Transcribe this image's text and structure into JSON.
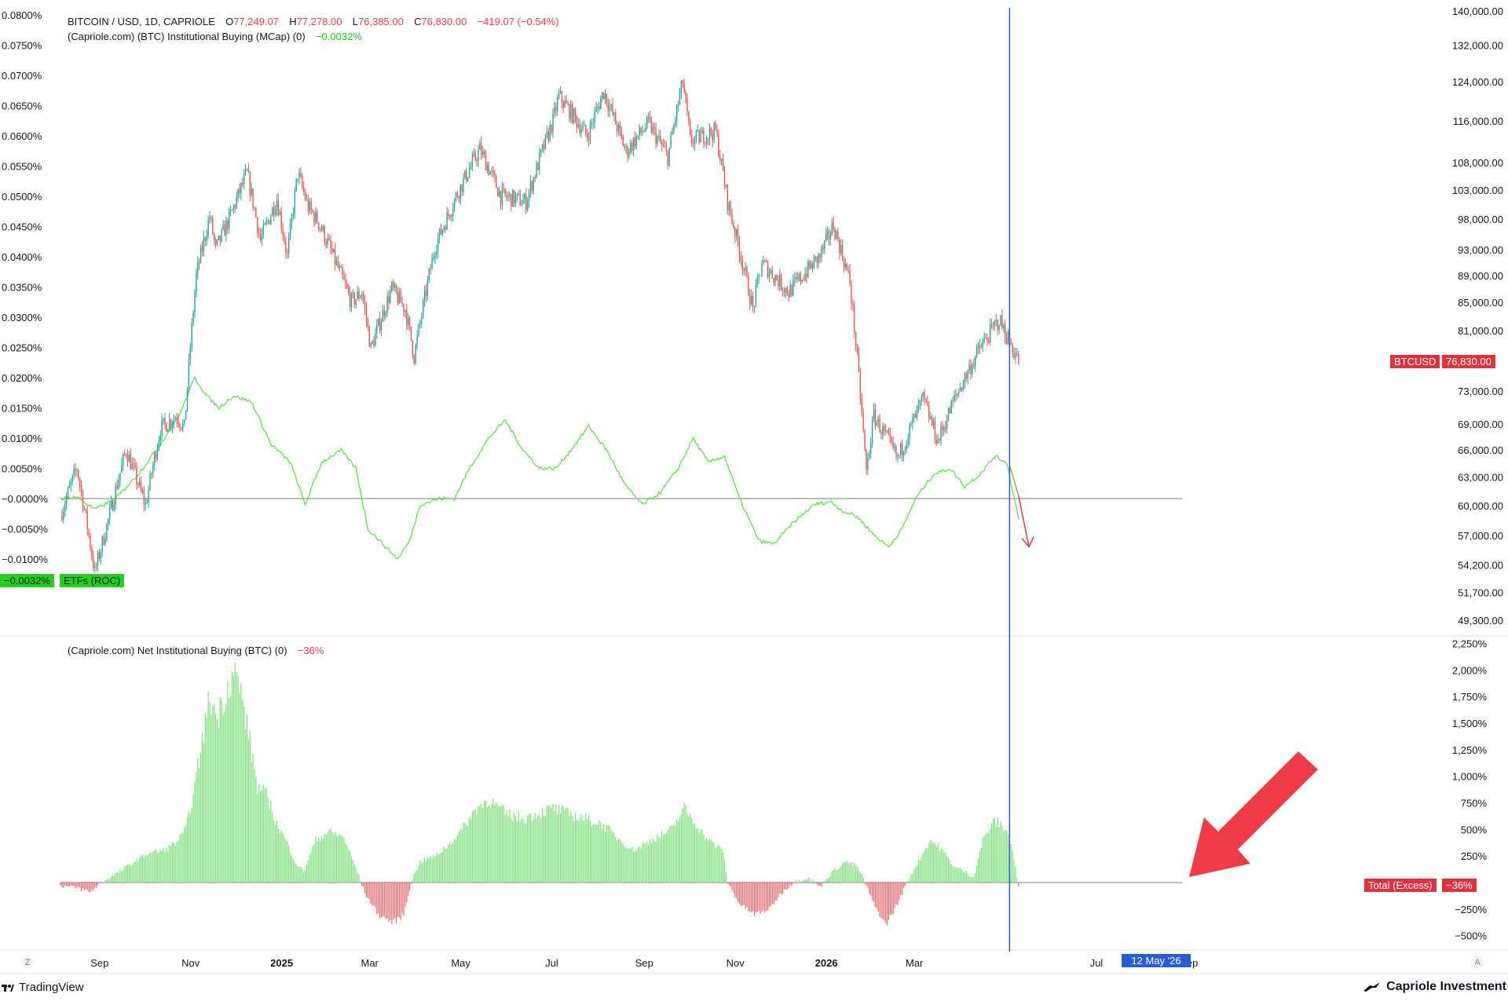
{
  "header": {
    "symbol": "BITCOIN / USD, 1D, CAPRIOLE",
    "o_label": "O",
    "o_value": "77,249.07",
    "h_label": "H",
    "h_value": "77,278.00",
    "l_label": "L",
    "l_value": "76,385.00",
    "c_label": "C",
    "c_value": "76,830.00",
    "change": "−419.07 (−0.54%)",
    "indicator1_name": "(Capriole.com) (BTC) Institutional Buying (MCap) (0)",
    "indicator1_value": "−0.0032%",
    "indicator2_name": "(Capriole.com) Net Institutional Buying (BTC) (0)",
    "indicator2_value": "−36%"
  },
  "tags": {
    "btcusd_label": "BTCUSD",
    "btcusd_value": "76,830.00",
    "roc_value": "−0.0032%",
    "roc_label": "ETFs (ROC)",
    "excess_label": "Total (Excess)",
    "excess_value": "−36%",
    "cursor_date": "12 May '26"
  },
  "corner": {
    "left": "Z",
    "right": "A"
  },
  "footer": {
    "tradingview": "TradingView",
    "capriole": "Capriole Investment"
  },
  "colors": {
    "up": "#26a69a",
    "down": "#ef5350",
    "roc_line": "#5ee04b",
    "hist_pos": "#7ce07a",
    "hist_neg": "#e06b6b",
    "cursor": "#2a5bd7",
    "axis_text": "#131722",
    "red_tag": "#e0323c",
    "green_tag": "#22d11e"
  },
  "chart_data": [
    {
      "type": "candlestick",
      "title": "BITCOIN / USD, 1D, CAPRIOLE",
      "scale": "log",
      "yaxis_side": "right",
      "y_ticks": [
        "140,000.00",
        "132,000.00",
        "124,000.00",
        "116,000.00",
        "108,000.00",
        "103,000.00",
        "98,000.00",
        "93,000.00",
        "89,000.00",
        "85,000.00",
        "81,000.00",
        "73,000.00",
        "69,000.00",
        "66,000.00",
        "63,000.00",
        "60,000.00",
        "57,000.00",
        "54,200.00",
        "51,700.00",
        "49,300.00"
      ],
      "x_ticks": [
        "Sep",
        "Nov",
        "2025",
        "Mar",
        "May",
        "Jul",
        "Sep",
        "Nov",
        "2026",
        "Mar",
        "Jul",
        "Sep"
      ],
      "x_start": "2024-08-14",
      "x_end": "2026-05-18",
      "price_path": [
        [
          "2024-08-14",
          59000
        ],
        [
          "2024-08-25",
          64000
        ],
        [
          "2024-09-06",
          53500
        ],
        [
          "2024-09-15",
          58500
        ],
        [
          "2024-09-27",
          66000
        ],
        [
          "2024-10-10",
          60000
        ],
        [
          "2024-10-20",
          68500
        ],
        [
          "2024-10-31",
          70000
        ],
        [
          "2024-11-05",
          68500
        ],
        [
          "2024-11-13",
          89000
        ],
        [
          "2024-11-22",
          98500
        ],
        [
          "2024-11-26",
          93000
        ],
        [
          "2024-12-05",
          98000
        ],
        [
          "2024-12-17",
          106000
        ],
        [
          "2024-12-26",
          94500
        ],
        [
          "2025-01-06",
          101500
        ],
        [
          "2025-01-13",
          92000
        ],
        [
          "2025-01-20",
          106000
        ],
        [
          "2025-01-27",
          100000
        ],
        [
          "2025-02-03",
          97500
        ],
        [
          "2025-02-25",
          85000
        ],
        [
          "2025-03-04",
          86500
        ],
        [
          "2025-03-10",
          78500
        ],
        [
          "2025-03-24",
          87000
        ],
        [
          "2025-04-02",
          84000
        ],
        [
          "2025-04-08",
          77500
        ],
        [
          "2025-04-22",
          93500
        ],
        [
          "2025-05-08",
          103000
        ],
        [
          "2025-05-22",
          110500
        ],
        [
          "2025-06-05",
          102000
        ],
        [
          "2025-06-22",
          101000
        ],
        [
          "2025-07-10",
          116000
        ],
        [
          "2025-07-14",
          121000
        ],
        [
          "2025-08-02",
          113000
        ],
        [
          "2025-08-13",
          122000
        ],
        [
          "2025-08-28",
          110000
        ],
        [
          "2025-09-12",
          115500
        ],
        [
          "2025-09-25",
          109000
        ],
        [
          "2025-10-05",
          124000
        ],
        [
          "2025-10-10",
          112000
        ],
        [
          "2025-10-27",
          114000
        ],
        [
          "2025-11-04",
          101000
        ],
        [
          "2025-11-21",
          84000
        ],
        [
          "2025-11-27",
          91000
        ],
        [
          "2025-12-15",
          86500
        ],
        [
          "2026-01-05",
          92000
        ],
        [
          "2026-01-14",
          97000
        ],
        [
          "2026-01-25",
          88000
        ],
        [
          "2026-02-05",
          63500
        ],
        [
          "2026-02-10",
          70000
        ],
        [
          "2026-02-26",
          65000
        ],
        [
          "2026-03-15",
          72000
        ],
        [
          "2026-03-25",
          67000
        ],
        [
          "2026-04-05",
          72000
        ],
        [
          "2026-04-22",
          78500
        ],
        [
          "2026-05-05",
          82500
        ],
        [
          "2026-05-18",
          76830
        ]
      ],
      "last_price": 76830
    },
    {
      "type": "line",
      "name": "ETFs (ROC)",
      "yaxis_side": "left",
      "y_ticks": [
        "0.0800%",
        "0.0750%",
        "0.0700%",
        "0.0650%",
        "0.0600%",
        "0.0550%",
        "0.0500%",
        "0.0450%",
        "0.0400%",
        "0.0350%",
        "0.0300%",
        "0.0250%",
        "0.0200%",
        "0.0150%",
        "0.0100%",
        "0.0050%",
        "−0.0000%",
        "−0.0050%",
        "−0.0100%"
      ],
      "ylim": [
        -0.01,
        0.08
      ],
      "zero_line": 0,
      "points": [
        [
          "2024-08-14",
          0.0
        ],
        [
          "2024-08-25",
          0.0003
        ],
        [
          "2024-09-06",
          -0.0018
        ],
        [
          "2024-09-20",
          0.0
        ],
        [
          "2024-10-05",
          0.004
        ],
        [
          "2024-10-20",
          0.009
        ],
        [
          "2024-11-02",
          0.014
        ],
        [
          "2024-11-12",
          0.02
        ],
        [
          "2024-11-20",
          0.017
        ],
        [
          "2024-11-28",
          0.015
        ],
        [
          "2024-12-08",
          0.017
        ],
        [
          "2024-12-20",
          0.016
        ],
        [
          "2025-01-02",
          0.009
        ],
        [
          "2025-01-15",
          0.006
        ],
        [
          "2025-01-25",
          -0.001
        ],
        [
          "2025-02-05",
          0.006
        ],
        [
          "2025-02-18",
          0.008
        ],
        [
          "2025-02-28",
          0.005
        ],
        [
          "2025-03-08",
          -0.005
        ],
        [
          "2025-03-20",
          -0.008
        ],
        [
          "2025-03-28",
          -0.01
        ],
        [
          "2025-04-05",
          -0.007
        ],
        [
          "2025-04-12",
          -0.001
        ],
        [
          "2025-04-25",
          0.0
        ],
        [
          "2025-05-05",
          0.0
        ],
        [
          "2025-05-15",
          0.005
        ],
        [
          "2025-05-28",
          0.01
        ],
        [
          "2025-06-08",
          0.013
        ],
        [
          "2025-06-20",
          0.008
        ],
        [
          "2025-07-01",
          0.005
        ],
        [
          "2025-07-12",
          0.005
        ],
        [
          "2025-07-22",
          0.008
        ],
        [
          "2025-08-03",
          0.012
        ],
        [
          "2025-08-15",
          0.008
        ],
        [
          "2025-08-28",
          0.002
        ],
        [
          "2025-09-08",
          -0.001
        ],
        [
          "2025-09-20",
          0.001
        ],
        [
          "2025-10-02",
          0.005
        ],
        [
          "2025-10-12",
          0.01
        ],
        [
          "2025-10-22",
          0.006
        ],
        [
          "2025-11-02",
          0.007
        ],
        [
          "2025-11-12",
          0.0
        ],
        [
          "2025-11-25",
          -0.007
        ],
        [
          "2025-12-05",
          -0.0075
        ],
        [
          "2025-12-18",
          -0.004
        ],
        [
          "2026-01-01",
          -0.001
        ],
        [
          "2026-01-12",
          -0.0005
        ],
        [
          "2026-01-20",
          -0.002
        ],
        [
          "2026-01-30",
          -0.003
        ],
        [
          "2026-02-10",
          -0.006
        ],
        [
          "2026-02-20",
          -0.008
        ],
        [
          "2026-03-01",
          -0.005
        ],
        [
          "2026-03-10",
          0.0
        ],
        [
          "2026-03-22",
          0.004
        ],
        [
          "2026-04-02",
          0.005
        ],
        [
          "2026-04-12",
          0.002
        ],
        [
          "2026-04-22",
          0.004
        ],
        [
          "2026-05-02",
          0.007
        ],
        [
          "2026-05-10",
          0.006
        ],
        [
          "2026-05-18",
          -0.0032
        ]
      ],
      "projection": [
        [
          "2026-05-12",
          0.0055
        ],
        [
          "2026-05-18",
          0.0005
        ],
        [
          "2026-05-25",
          -0.008
        ]
      ],
      "last_value": -0.0032
    },
    {
      "type": "bar",
      "name": "Net Institutional Buying (BTC)",
      "yaxis_side": "right",
      "y_ticks": [
        "2,250%",
        "2,000%",
        "1,750%",
        "1,500%",
        "1,250%",
        "1,000%",
        "750%",
        "500%",
        "250%",
        "−250%",
        "−500%"
      ],
      "ylim": [
        -560,
        2250
      ],
      "points": [
        [
          "2024-08-14",
          -30
        ],
        [
          "2024-08-25",
          -50
        ],
        [
          "2024-09-03",
          -90
        ],
        [
          "2024-09-10",
          0
        ],
        [
          "2024-09-18",
          60
        ],
        [
          "2024-10-01",
          180
        ],
        [
          "2024-10-12",
          280
        ],
        [
          "2024-10-22",
          300
        ],
        [
          "2024-10-31",
          380
        ],
        [
          "2024-11-06",
          500
        ],
        [
          "2024-11-12",
          900
        ],
        [
          "2024-11-16",
          1250
        ],
        [
          "2024-11-22",
          1750
        ],
        [
          "2024-11-27",
          1550
        ],
        [
          "2024-12-03",
          1800
        ],
        [
          "2024-12-08",
          2000
        ],
        [
          "2024-12-12",
          1850
        ],
        [
          "2024-12-18",
          1400
        ],
        [
          "2024-12-24",
          900
        ],
        [
          "2024-12-31",
          800
        ],
        [
          "2025-01-06",
          550
        ],
        [
          "2025-01-12",
          400
        ],
        [
          "2025-01-18",
          200
        ],
        [
          "2025-01-24",
          100
        ],
        [
          "2025-02-01",
          400
        ],
        [
          "2025-02-10",
          480
        ],
        [
          "2025-02-20",
          420
        ],
        [
          "2025-03-01",
          100
        ],
        [
          "2025-03-06",
          -100
        ],
        [
          "2025-03-15",
          -300
        ],
        [
          "2025-03-25",
          -380
        ],
        [
          "2025-04-01",
          -300
        ],
        [
          "2025-04-06",
          0
        ],
        [
          "2025-04-12",
          200
        ],
        [
          "2025-04-22",
          250
        ],
        [
          "2025-05-01",
          350
        ],
        [
          "2025-05-10",
          500
        ],
        [
          "2025-05-20",
          700
        ],
        [
          "2025-05-28",
          780
        ],
        [
          "2025-06-08",
          650
        ],
        [
          "2025-06-20",
          600
        ],
        [
          "2025-06-30",
          650
        ],
        [
          "2025-07-10",
          700
        ],
        [
          "2025-07-20",
          650
        ],
        [
          "2025-08-01",
          600
        ],
        [
          "2025-08-12",
          550
        ],
        [
          "2025-08-24",
          400
        ],
        [
          "2025-09-02",
          300
        ],
        [
          "2025-09-14",
          400
        ],
        [
          "2025-09-28",
          500
        ],
        [
          "2025-10-06",
          700
        ],
        [
          "2025-10-14",
          550
        ],
        [
          "2025-10-22",
          400
        ],
        [
          "2025-11-01",
          300
        ],
        [
          "2025-11-04",
          0
        ],
        [
          "2025-11-12",
          -200
        ],
        [
          "2025-11-22",
          -300
        ],
        [
          "2025-12-02",
          -250
        ],
        [
          "2025-12-10",
          -100
        ],
        [
          "2025-12-18",
          0
        ],
        [
          "2025-12-28",
          50
        ],
        [
          "2026-01-05",
          -40
        ],
        [
          "2026-01-12",
          80
        ],
        [
          "2026-01-22",
          200
        ],
        [
          "2026-01-30",
          150
        ],
        [
          "2026-02-04",
          0
        ],
        [
          "2026-02-10",
          -200
        ],
        [
          "2026-02-18",
          -400
        ],
        [
          "2026-02-26",
          -200
        ],
        [
          "2026-03-04",
          0
        ],
        [
          "2026-03-10",
          150
        ],
        [
          "2026-03-20",
          400
        ],
        [
          "2026-03-28",
          300
        ],
        [
          "2026-04-05",
          150
        ],
        [
          "2026-04-12",
          100
        ],
        [
          "2026-04-18",
          50
        ],
        [
          "2026-04-24",
          400
        ],
        [
          "2026-05-02",
          580
        ],
        [
          "2026-05-10",
          500
        ],
        [
          "2026-05-14",
          300
        ],
        [
          "2026-05-18",
          -36
        ]
      ],
      "last_value": -36
    }
  ]
}
